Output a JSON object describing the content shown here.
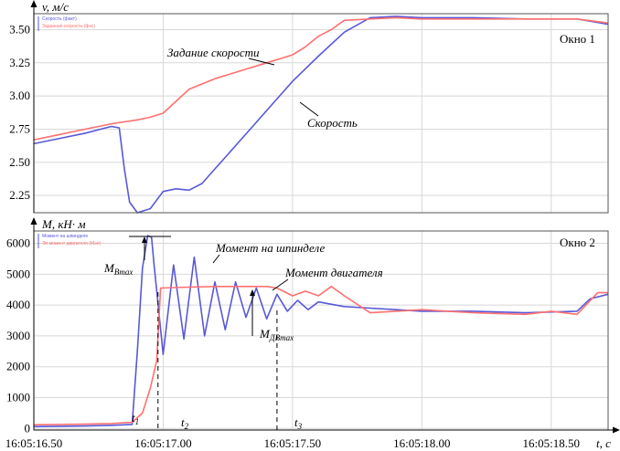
{
  "chart_data": [
    {
      "type": "line",
      "ylabel": "v, м/с",
      "window_label": "Окно 1",
      "ylim": [
        2.12,
        3.62
      ],
      "yticks": [
        "3.50",
        "3.25",
        "3.00",
        "2.75",
        "2.50",
        "2.25"
      ],
      "ytick_values": [
        3.5,
        3.25,
        3.0,
        2.75,
        2.5,
        2.25
      ],
      "legend": [
        "Скорость (факт)",
        "Заданная скорость (фзс)"
      ],
      "grid": true,
      "annotations": [
        {
          "text": "Задание скорости",
          "x": 16.965,
          "y": 3.34
        },
        {
          "text": "Скорость",
          "x": 17.045,
          "y": 2.74
        }
      ],
      "series": [
        {
          "color": "#5858d8",
          "x": [
            16.5,
            16.6,
            16.7,
            16.76,
            16.8,
            16.83,
            16.85,
            16.87,
            16.9,
            16.95,
            17.0,
            17.05,
            17.1,
            17.15,
            17.2,
            17.25,
            17.3,
            17.35,
            17.4,
            17.45,
            17.5,
            17.6,
            17.7,
            17.8,
            17.9,
            18.0,
            18.2,
            18.4,
            18.6,
            18.72
          ],
          "values": [
            2.64,
            2.68,
            2.72,
            2.75,
            2.77,
            2.76,
            2.45,
            2.2,
            2.12,
            2.15,
            2.28,
            2.3,
            2.29,
            2.34,
            2.45,
            2.56,
            2.67,
            2.78,
            2.89,
            3.0,
            3.11,
            3.3,
            3.48,
            3.59,
            3.6,
            3.59,
            3.59,
            3.58,
            3.58,
            3.54
          ]
        },
        {
          "color": "#ff7070",
          "x": [
            16.5,
            16.6,
            16.7,
            16.8,
            16.9,
            16.95,
            17.0,
            17.05,
            17.1,
            17.2,
            17.3,
            17.4,
            17.5,
            17.55,
            17.6,
            17.65,
            17.7,
            17.8,
            17.9,
            18.0,
            18.2,
            18.4,
            18.6,
            18.72
          ],
          "values": [
            2.67,
            2.71,
            2.75,
            2.79,
            2.82,
            2.84,
            2.87,
            2.96,
            3.05,
            3.13,
            3.19,
            3.25,
            3.31,
            3.37,
            3.45,
            3.5,
            3.57,
            3.58,
            3.59,
            3.58,
            3.58,
            3.58,
            3.58,
            3.55
          ]
        }
      ]
    },
    {
      "type": "line",
      "ylabel": "M, кН· м",
      "window_label": "Окно 2",
      "xlabel": "t, с",
      "ylim": [
        -50,
        6400
      ],
      "yticks": [
        "6000",
        "5000",
        "4000",
        "3000",
        "2000",
        "1000",
        "0"
      ],
      "ytick_values": [
        6000,
        5000,
        4000,
        3000,
        2000,
        1000,
        0
      ],
      "xticks": [
        "16:05:16.50",
        "16:05:17.00",
        "16:05:17.50",
        "16:05:18.00",
        "16:05:18.50"
      ],
      "xtick_values": [
        16.5,
        17.0,
        17.5,
        18.0,
        18.5
      ],
      "xlim": [
        16.5,
        18.72
      ],
      "legend": [
        "Момент на шпинделе",
        "Эл момент двигателя (Мэл)"
      ],
      "grid": true,
      "annotations": [
        {
          "text": "Момент на шпинделе",
          "x": 17.12,
          "y": 5900
        },
        {
          "text": "Момент двигателя",
          "x": 17.32,
          "y": 5000
        },
        {
          "text": "M",
          "sub": "Вmax",
          "x": 16.82,
          "y": 5150
        },
        {
          "text": "M",
          "sub": "ДВmax",
          "x": 17.36,
          "y": 3150
        },
        {
          "text": "t",
          "sub": "1",
          "x": 16.855,
          "y": 300
        },
        {
          "text": "t",
          "sub": "2",
          "x": 17.04,
          "y": 50
        },
        {
          "text": "t",
          "sub": "3",
          "x": 17.565,
          "y": 50
        }
      ],
      "markers": [
        16.98,
        17.44
      ],
      "series": [
        {
          "color": "#5858d8",
          "x": [
            16.5,
            16.6,
            16.7,
            16.8,
            16.88,
            16.9,
            16.92,
            16.94,
            16.955,
            16.965,
            17.0,
            17.04,
            17.08,
            17.12,
            17.16,
            17.2,
            17.24,
            17.28,
            17.32,
            17.36,
            17.4,
            17.44,
            17.48,
            17.52,
            17.56,
            17.6,
            17.7,
            17.8,
            17.9,
            18.0,
            18.2,
            18.4,
            18.6,
            18.65,
            18.72
          ],
          "values": [
            60,
            70,
            80,
            100,
            130,
            2500,
            5200,
            6250,
            6200,
            5300,
            2400,
            5300,
            2900,
            5550,
            3000,
            4750,
            3200,
            4750,
            3600,
            4550,
            3550,
            4350,
            3800,
            4150,
            3850,
            4100,
            3950,
            3900,
            3850,
            3800,
            3800,
            3750,
            3800,
            4200,
            4350
          ]
        },
        {
          "color": "#ff7070",
          "x": [
            16.5,
            16.6,
            16.7,
            16.8,
            16.88,
            16.92,
            16.95,
            16.975,
            16.99,
            17.1,
            17.2,
            17.3,
            17.4,
            17.44,
            17.5,
            17.55,
            17.6,
            17.65,
            17.7,
            17.8,
            17.9,
            18.0,
            18.2,
            18.4,
            18.5,
            18.6,
            18.68,
            18.72
          ],
          "values": [
            120,
            130,
            140,
            160,
            200,
            500,
            1300,
            2200,
            4550,
            4580,
            4600,
            4600,
            4600,
            4550,
            4300,
            4450,
            4300,
            4600,
            4300,
            3750,
            3800,
            3850,
            3750,
            3700,
            3800,
            3700,
            4400,
            4400
          ]
        }
      ]
    }
  ]
}
